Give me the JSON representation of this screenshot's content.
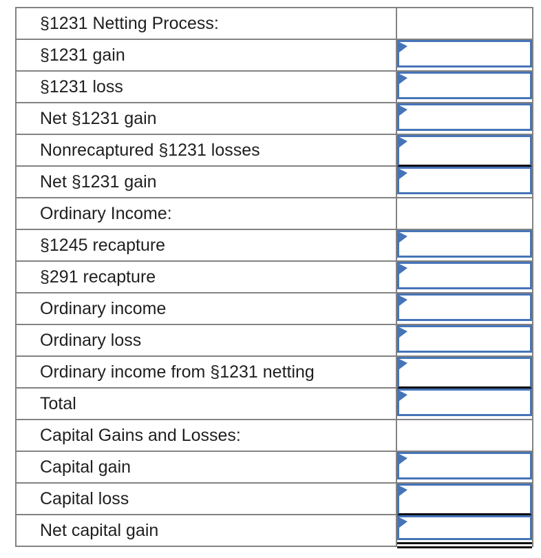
{
  "worksheet": {
    "rows": [
      {
        "label": "§1231 Netting Process:",
        "type": "section",
        "underline": "none"
      },
      {
        "label": "§1231 gain",
        "type": "input",
        "underline": "none"
      },
      {
        "label": "§1231 loss",
        "type": "input",
        "underline": "none"
      },
      {
        "label": "Net §1231 gain",
        "type": "input",
        "underline": "none"
      },
      {
        "label": "Nonrecaptured §1231 losses",
        "type": "input",
        "underline": "single"
      },
      {
        "label": "Net §1231 gain",
        "type": "input",
        "underline": "none"
      },
      {
        "label": "Ordinary Income:",
        "type": "section",
        "underline": "none"
      },
      {
        "label": "§1245 recapture",
        "type": "input",
        "underline": "none"
      },
      {
        "label": "§291 recapture",
        "type": "input",
        "underline": "none"
      },
      {
        "label": "Ordinary income",
        "type": "input",
        "underline": "none"
      },
      {
        "label": "Ordinary loss",
        "type": "input",
        "underline": "none"
      },
      {
        "label": "Ordinary income from §1231 netting",
        "type": "input",
        "underline": "single"
      },
      {
        "label": "Total",
        "type": "input",
        "underline": "none"
      },
      {
        "label": "Capital Gains and Losses:",
        "type": "section",
        "underline": "none"
      },
      {
        "label": "Capital gain",
        "type": "input",
        "underline": "none"
      },
      {
        "label": "Capital loss",
        "type": "input",
        "underline": "single"
      },
      {
        "label": "Net capital gain",
        "type": "input",
        "underline": "double"
      }
    ],
    "input_value": "",
    "input_placeholder": "",
    "icons": {
      "marker": "cell-marker-triangle"
    },
    "colors": {
      "accent_blue": "#4674b8",
      "grid_gray": "#828282",
      "underline_black": "#0d0d0d",
      "text": "#1f1f1f",
      "background": "#ffffff"
    }
  }
}
